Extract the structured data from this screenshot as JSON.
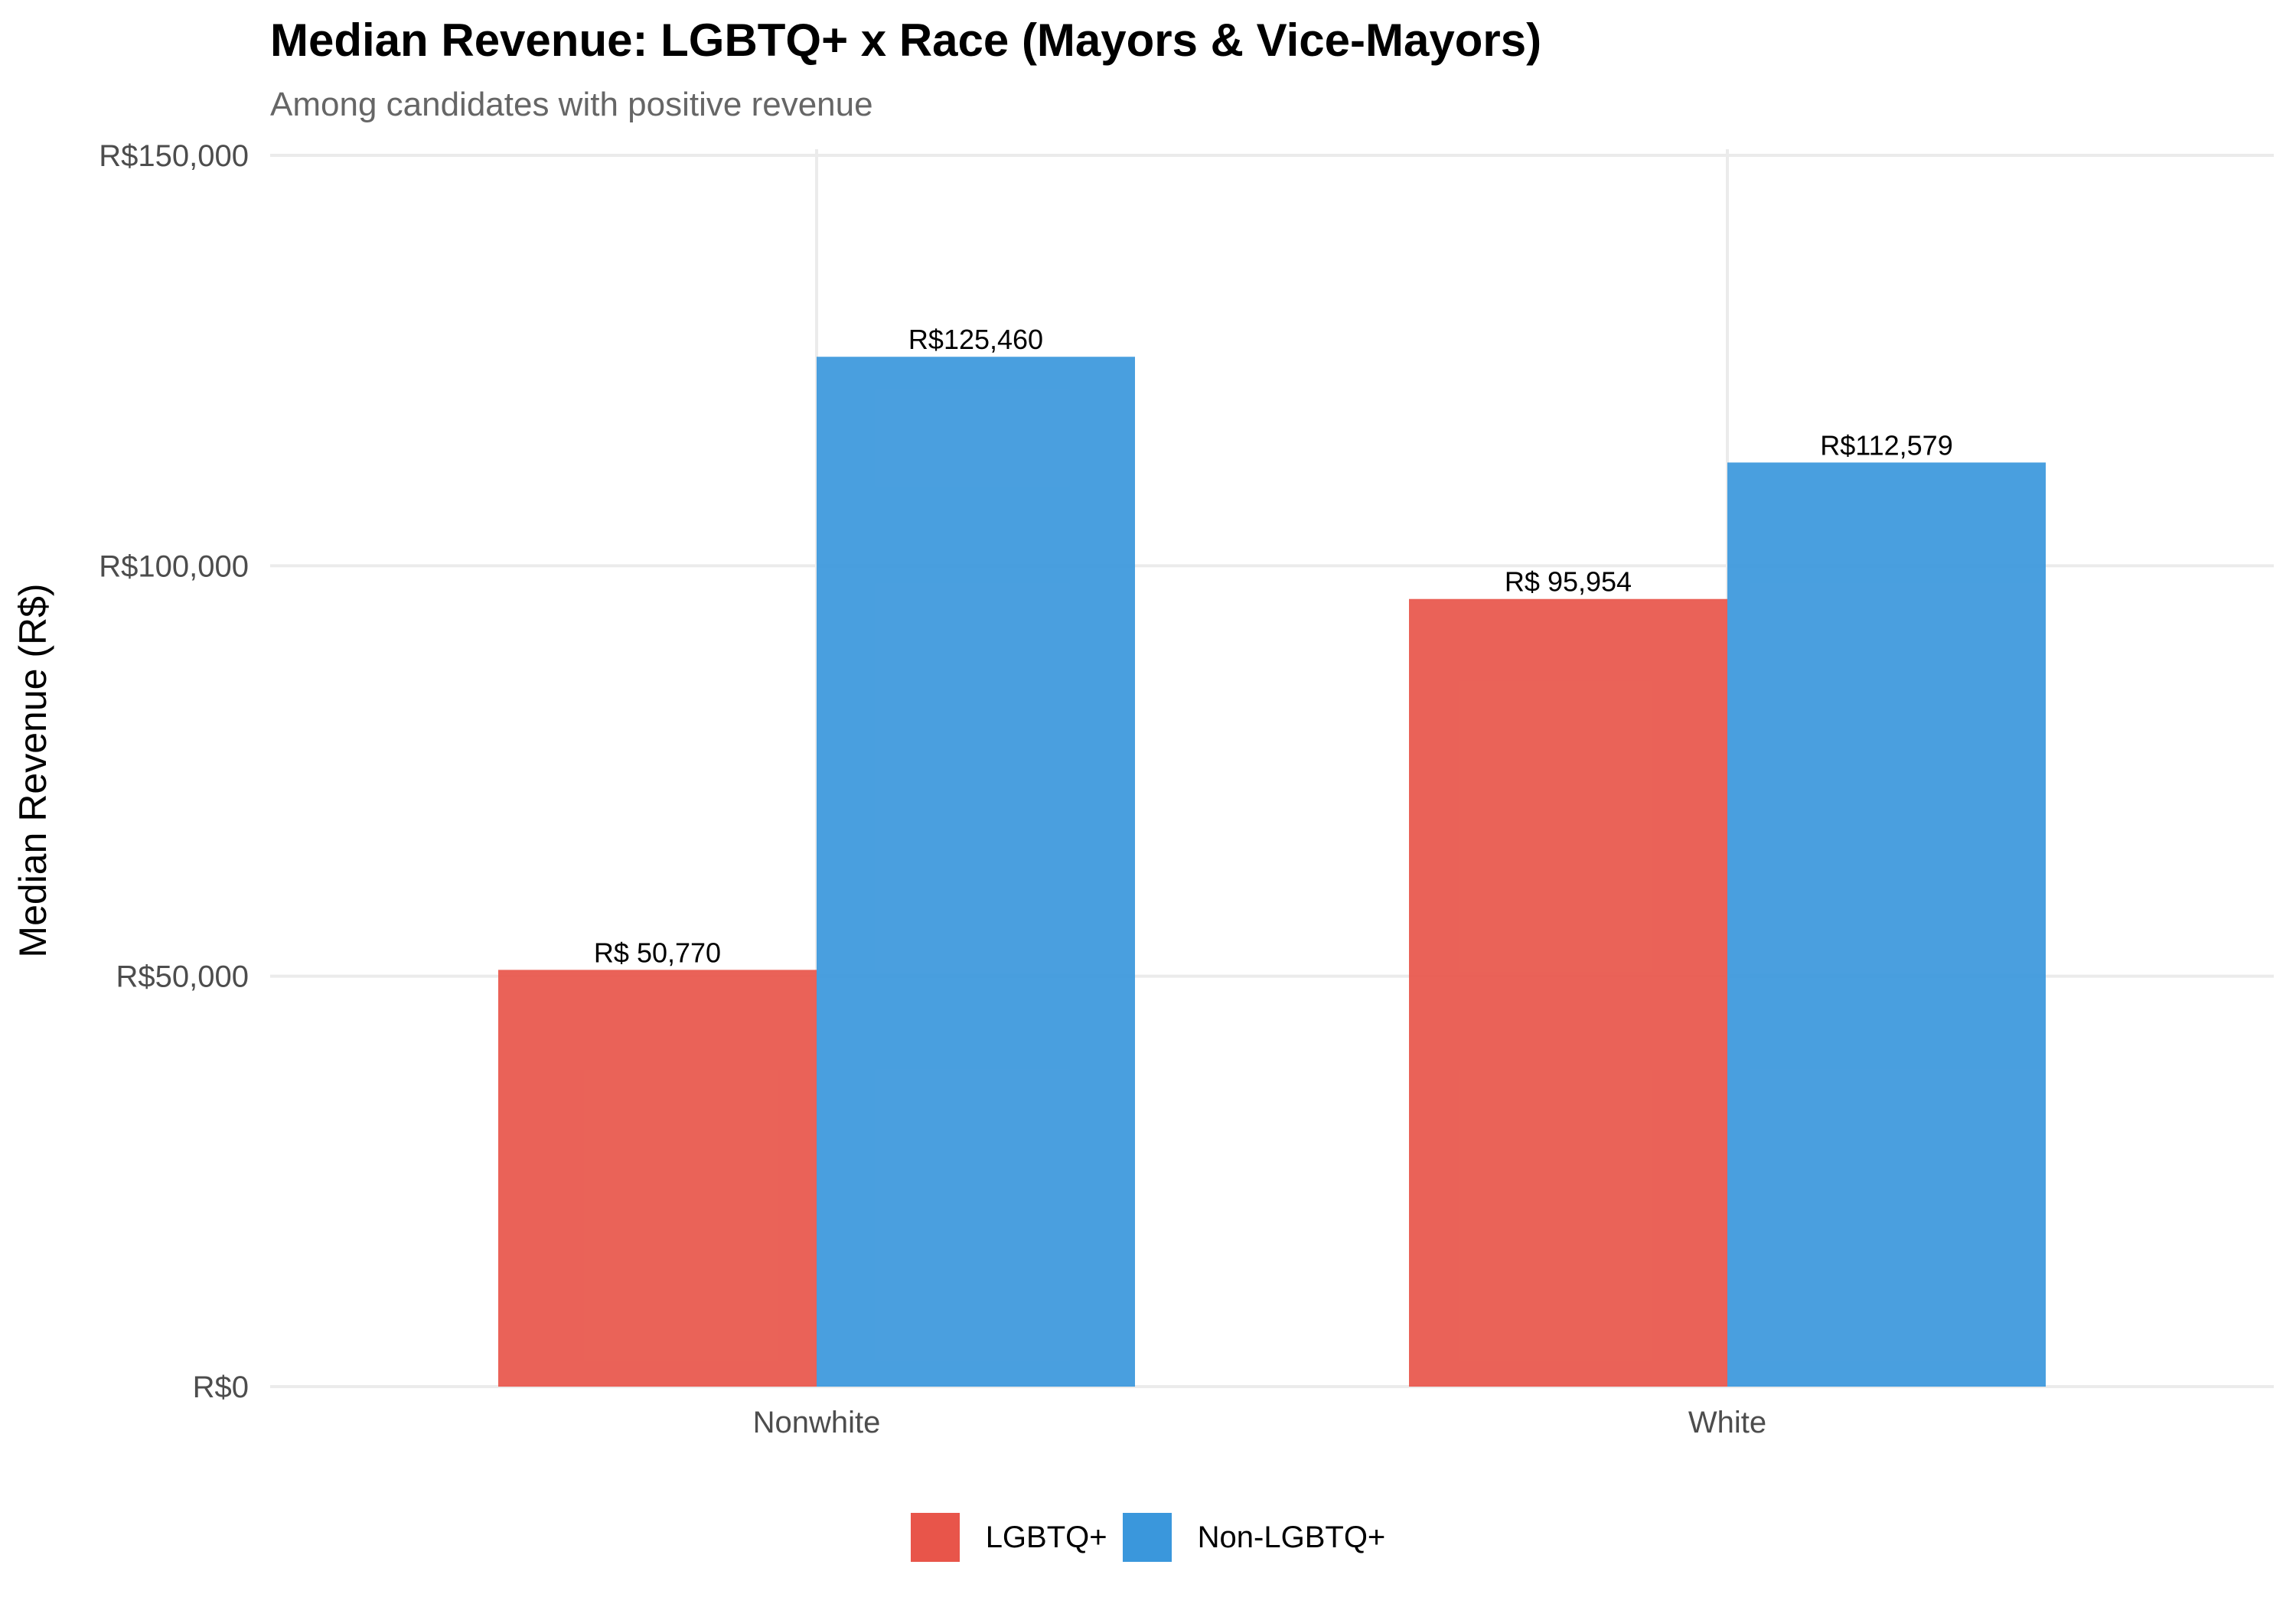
{
  "chart_data": {
    "type": "bar",
    "title": "Median Revenue: LGBTQ+ x Race (Mayors & Vice-Mayors)",
    "subtitle": "Among candidates with positive revenue",
    "xlabel": "",
    "ylabel": "Median Revenue (R$)",
    "ylim": [
      0,
      150000
    ],
    "yticks": [
      0,
      50000,
      100000,
      150000
    ],
    "ytick_labels": [
      "R$0",
      "R$50,000",
      "R$100,000",
      "R$150,000"
    ],
    "categories": [
      "Nonwhite",
      "White"
    ],
    "series": [
      {
        "name": "LGBTQ+",
        "color": "#E8554A",
        "values": [
          50770,
          95954
        ],
        "labels": [
          "R$ 50,770",
          "R$ 95,954"
        ]
      },
      {
        "name": "Non-LGBTQ+",
        "color": "#3A97DC",
        "values": [
          125460,
          112579
        ],
        "labels": [
          "R$125,460",
          "R$112,579"
        ]
      }
    ],
    "grid": true,
    "legend_position": "bottom"
  }
}
